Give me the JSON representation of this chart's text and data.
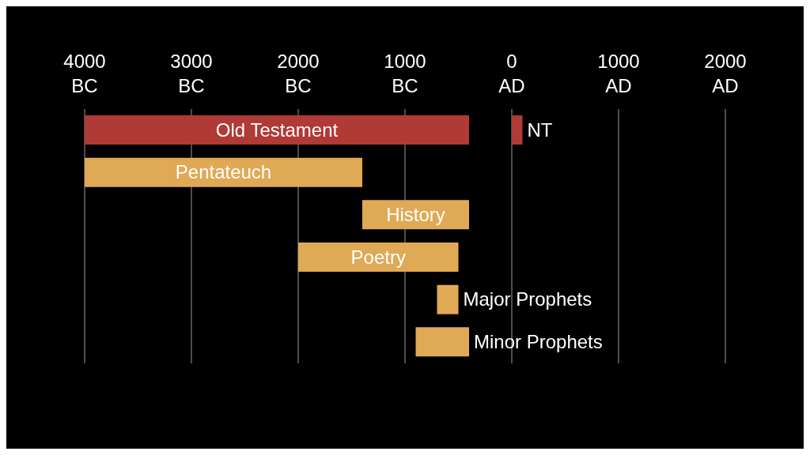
{
  "chart_data": {
    "type": "bar",
    "orientation": "horizontal",
    "categories": [
      "Old Testament",
      "Pentateuch",
      "History",
      "Poetry",
      "Major Prophets",
      "Minor Prophets"
    ],
    "series": [
      {
        "values": [
          3600,
          2600,
          1000,
          1500,
          200,
          500
        ],
        "base": [
          -4000,
          -4000,
          -1400,
          -2000,
          -700,
          -900
        ],
        "colors": [
          "#b03a35",
          "#e0a955",
          "#e0a955",
          "#e0a955",
          "#e0a955",
          "#e0a955"
        ]
      },
      {
        "name": "NT",
        "color": "#b03a35",
        "values": [
          100,
          null,
          null,
          null,
          null,
          null
        ],
        "base": [
          0,
          null,
          null,
          null,
          null,
          null
        ]
      }
    ],
    "xlim": [
      -4000,
      2000
    ],
    "xticks": [
      {
        "value": -4000,
        "label": "4000 BC"
      },
      {
        "value": -3000,
        "label": "3000 BC"
      },
      {
        "value": -2000,
        "label": "2000 BC"
      },
      {
        "value": -1000,
        "label": "1000 BC"
      },
      {
        "value": 0,
        "label": "0 AD"
      },
      {
        "value": 1000,
        "label": "1000 AD"
      },
      {
        "value": 2000,
        "label": "2000 AD"
      }
    ],
    "grid": "x"
  }
}
